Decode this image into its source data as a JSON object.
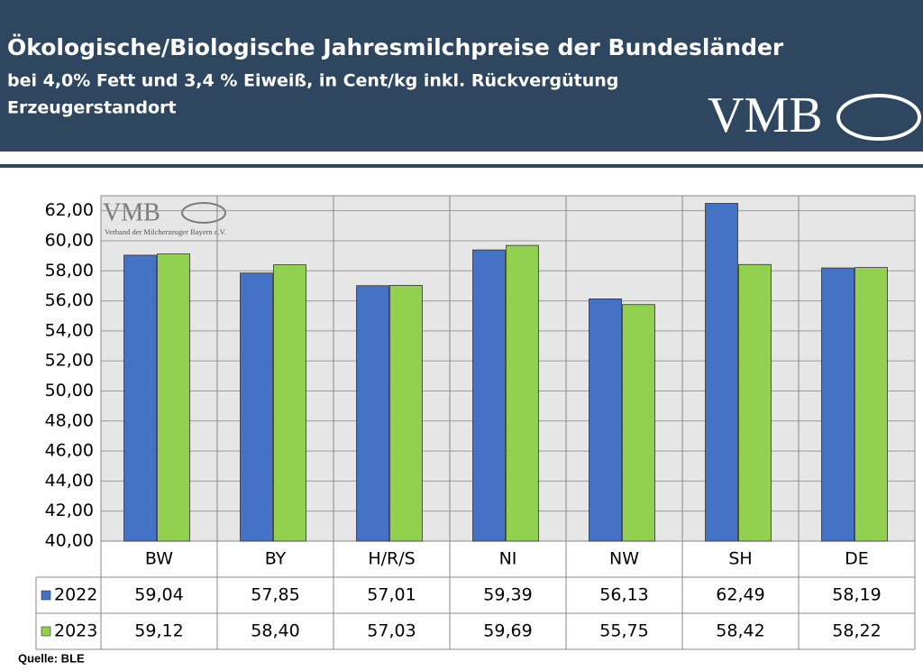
{
  "chart_data": {
    "type": "bar",
    "title": "Ökologische/Biologische Jahresmilchpreise der Bundesländer",
    "subtitle": "bei 4,0% Fett und 3,4 % Eiweiß, in Cent/kg inkl. Rückvergütung",
    "subtitle2": "Erzeugerstandort",
    "logo": "VMB",
    "watermark": "VMB",
    "watermark_text": "Verband der Milcherzeuger Bayern e.V.",
    "source": "Quelle: BLE",
    "categories": [
      "BW",
      "BY",
      "H/R/S",
      "NI",
      "NW",
      "SH",
      "DE"
    ],
    "series": [
      {
        "name": "2022",
        "color": "#4472c4",
        "values": [
          59.04,
          57.85,
          57.01,
          59.39,
          56.13,
          62.49,
          58.19
        ],
        "value_labels": [
          "59,04",
          "57,85",
          "57,01",
          "59,39",
          "56,13",
          "62,49",
          "58,19"
        ]
      },
      {
        "name": "2023",
        "color": "#92d050",
        "values": [
          59.12,
          58.4,
          57.03,
          59.69,
          55.75,
          58.42,
          58.22
        ],
        "value_labels": [
          "59,12",
          "58,40",
          "57,03",
          "59,69",
          "55,75",
          "58,42",
          "58,22"
        ]
      }
    ],
    "ylim": [
      40,
      63
    ],
    "yticks": [
      {
        "value": 40,
        "label": "40,00"
      },
      {
        "value": 42,
        "label": "42,00"
      },
      {
        "value": 44,
        "label": "44,00"
      },
      {
        "value": 46,
        "label": "46,00"
      },
      {
        "value": 48,
        "label": "48,00"
      },
      {
        "value": 50,
        "label": "50,00"
      },
      {
        "value": 52,
        "label": "52,00"
      },
      {
        "value": 54,
        "label": "54,00"
      },
      {
        "value": 56,
        "label": "56,00"
      },
      {
        "value": 58,
        "label": "58,00"
      },
      {
        "value": 60,
        "label": "60,00"
      },
      {
        "value": 62,
        "label": "62,00"
      }
    ],
    "grid": true
  }
}
